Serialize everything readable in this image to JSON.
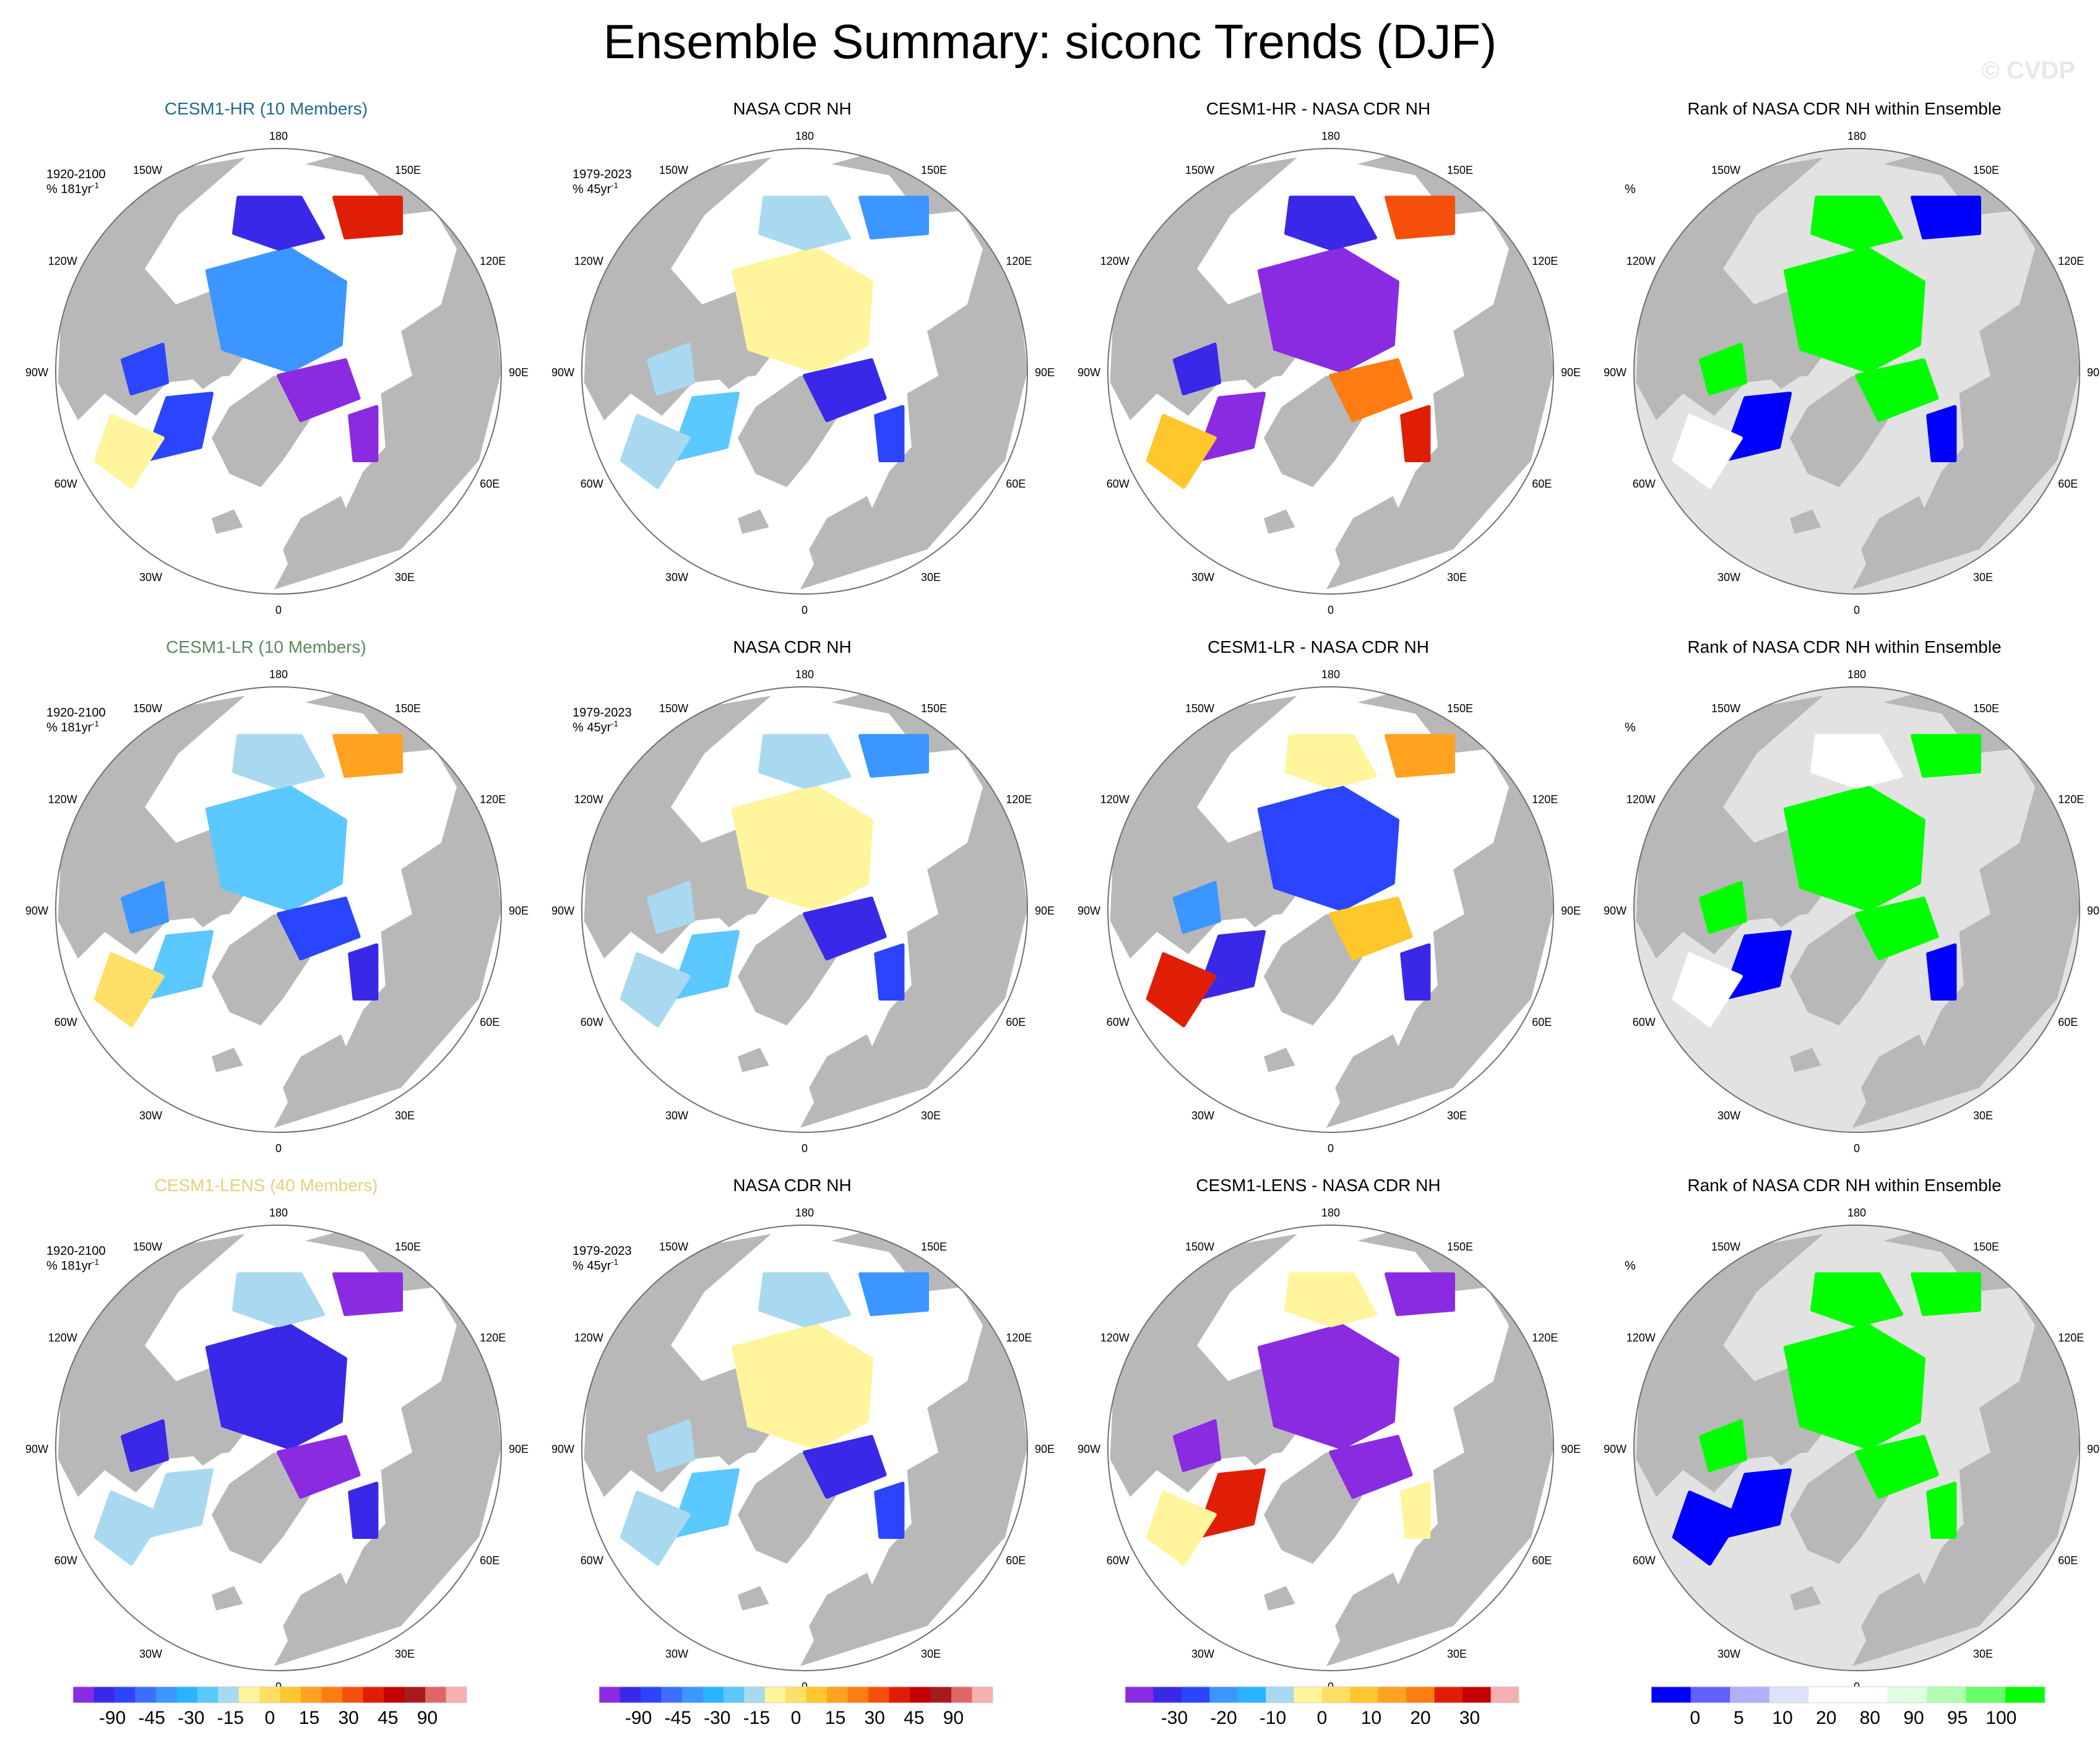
{
  "title": "Ensemble Summary: siconc Trends (DJF)",
  "watermark": "© CVDP",
  "colors": {
    "land": "#b8b8b8",
    "ocean": "#ffffff",
    "outline": "#707070",
    "title_hr": "#1f6b8c",
    "title_lr": "#5a8a5a",
    "title_lens": "#e3d27a",
    "title_default": "#000000"
  },
  "lon_labels": {
    "top": "180",
    "bottom": "0",
    "left_upper": "120W",
    "left_mid": "90W",
    "left_lower": "60W",
    "right_upper": "120E",
    "right_mid": "90E",
    "right_lower": "60E",
    "top_left": "150W",
    "top_right": "150E",
    "bottom_left": "30W",
    "bottom_right": "30E"
  },
  "chart_data": [
    {
      "type": "heatmap",
      "projection": "north polar stereographic",
      "panels": [
        {
          "row": 1,
          "col": 1,
          "title": "CESM1-HR (10 Members)",
          "title_color": "title_hr",
          "period": "1920-2100",
          "units": "% 181yr",
          "units_sup": "-1",
          "scheme": "trend",
          "variant": "hr"
        },
        {
          "row": 1,
          "col": 2,
          "title": "NASA CDR NH",
          "title_color": "title_default",
          "period": "1979-2023",
          "units": "% 45yr",
          "units_sup": "-1",
          "scheme": "trend",
          "variant": "obs"
        },
        {
          "row": 1,
          "col": 3,
          "title": "CESM1-HR - NASA CDR NH",
          "title_color": "title_default",
          "period": "",
          "units": "",
          "units_sup": "",
          "scheme": "diff",
          "variant": "hr"
        },
        {
          "row": 1,
          "col": 4,
          "title": "Rank of NASA CDR NH within Ensemble",
          "title_color": "title_default",
          "period": "",
          "units": "%",
          "units_sup": "",
          "scheme": "rank",
          "variant": "hr"
        },
        {
          "row": 2,
          "col": 1,
          "title": "CESM1-LR (10 Members)",
          "title_color": "title_lr",
          "period": "1920-2100",
          "units": "% 181yr",
          "units_sup": "-1",
          "scheme": "trend",
          "variant": "lr"
        },
        {
          "row": 2,
          "col": 2,
          "title": "NASA CDR NH",
          "title_color": "title_default",
          "period": "1979-2023",
          "units": "% 45yr",
          "units_sup": "-1",
          "scheme": "trend",
          "variant": "obs"
        },
        {
          "row": 2,
          "col": 3,
          "title": "CESM1-LR - NASA CDR NH",
          "title_color": "title_default",
          "period": "",
          "units": "",
          "units_sup": "",
          "scheme": "diff",
          "variant": "lr"
        },
        {
          "row": 2,
          "col": 4,
          "title": "Rank of NASA CDR NH within Ensemble",
          "title_color": "title_default",
          "period": "",
          "units": "%",
          "units_sup": "",
          "scheme": "rank",
          "variant": "lr"
        },
        {
          "row": 3,
          "col": 1,
          "title": "CESM1-LENS (40 Members)",
          "title_color": "title_lens",
          "period": "1920-2100",
          "units": "% 181yr",
          "units_sup": "-1",
          "scheme": "trend",
          "variant": "lens"
        },
        {
          "row": 3,
          "col": 2,
          "title": "NASA CDR NH",
          "title_color": "title_default",
          "period": "1979-2023",
          "units": "% 45yr",
          "units_sup": "-1",
          "scheme": "trend",
          "variant": "obs"
        },
        {
          "row": 3,
          "col": 3,
          "title": "CESM1-LENS - NASA CDR NH",
          "title_color": "title_default",
          "period": "",
          "units": "",
          "units_sup": "",
          "scheme": "diff",
          "variant": "lens"
        },
        {
          "row": 3,
          "col": 4,
          "title": "Rank of NASA CDR NH within Ensemble",
          "title_color": "title_default",
          "period": "",
          "units": "%",
          "units_sup": "",
          "scheme": "rank",
          "variant": "lens"
        }
      ],
      "colorbars": [
        {
          "name": "trend",
          "colors": [
            "#8a2be2",
            "#3a28e8",
            "#2b45ff",
            "#3d6eff",
            "#3c96ff",
            "#28b4ff",
            "#5bc8ff",
            "#a9d9f0",
            "#fff59d",
            "#ffe066",
            "#ffc72c",
            "#ffa21f",
            "#ff7c12",
            "#f54f0a",
            "#e01e05",
            "#c40000",
            "#a61c1c",
            "#e06666",
            "#f5b0b0"
          ],
          "tick_labels": [
            "-90",
            "-45",
            "-30",
            "-15",
            "0",
            "15",
            "30",
            "45",
            "90"
          ]
        },
        {
          "name": "trend",
          "colors": [
            "#8a2be2",
            "#3a28e8",
            "#2b45ff",
            "#3d6eff",
            "#3c96ff",
            "#28b4ff",
            "#5bc8ff",
            "#a9d9f0",
            "#fff59d",
            "#ffe066",
            "#ffc72c",
            "#ffa21f",
            "#ff7c12",
            "#f54f0a",
            "#e01e05",
            "#c40000",
            "#a61c1c",
            "#e06666",
            "#f5b0b0"
          ],
          "tick_labels": [
            "-90",
            "-45",
            "-30",
            "-15",
            "0",
            "15",
            "30",
            "45",
            "90"
          ]
        },
        {
          "name": "diff",
          "colors": [
            "#8a2be2",
            "#3a28e8",
            "#2b45ff",
            "#3c96ff",
            "#28b4ff",
            "#a9d9f0",
            "#fff59d",
            "#ffe066",
            "#ffc72c",
            "#ffa21f",
            "#ff7c12",
            "#e01e05",
            "#c40000",
            "#f5b0b0"
          ],
          "tick_labels": [
            "-30",
            "-20",
            "-10",
            "0",
            "10",
            "20",
            "30"
          ]
        },
        {
          "name": "rank",
          "colors": [
            "#0000ff",
            "#6060ff",
            "#b0b0ff",
            "#e0e0ff",
            "#ffffff",
            "#ffffff",
            "#e0ffe0",
            "#b0ffb0",
            "#66ff66",
            "#00ff00"
          ],
          "tick_labels": [
            "0",
            "5",
            "10",
            "20",
            "80",
            "90",
            "95",
            "100"
          ]
        }
      ]
    }
  ]
}
